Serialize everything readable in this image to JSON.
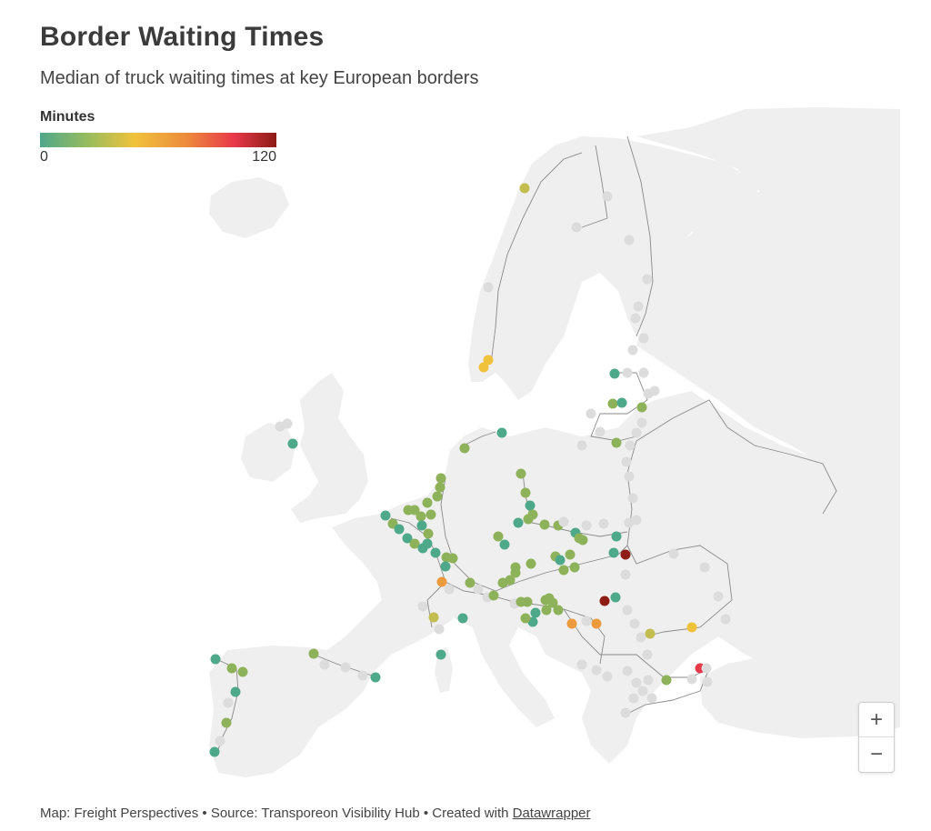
{
  "header": {
    "title": "Border Waiting Times",
    "subtitle": "Median of truck waiting times at key European borders"
  },
  "legend": {
    "title": "Minutes",
    "min_label": "0",
    "max_label": "120",
    "colors": [
      "#4ea88a",
      "#9fbd5b",
      "#f0c23c",
      "#ec8b3c",
      "#e8394a",
      "#8c1c14"
    ]
  },
  "map": {
    "land_color": "#efefef",
    "border_color": "#8a8a8a",
    "no_data_color": "#dcdcdc",
    "colors": {
      "teal": "#4ea88a",
      "green": "#8db25a",
      "olive": "#c3bd4f",
      "yellow": "#f0c23c",
      "orange": "#ec9a3c",
      "red": "#e8394a",
      "darkred": "#8c1c14"
    }
  },
  "zoom": {
    "in_label": "+",
    "out_label": "−",
    "in_icon": "plus-icon",
    "out_icon": "minus-icon"
  },
  "footer": {
    "text": "Map: Freight Perspectives • Source: Transporeon Visibility Hub • Created with ",
    "link_label": "Datawrapper"
  }
}
